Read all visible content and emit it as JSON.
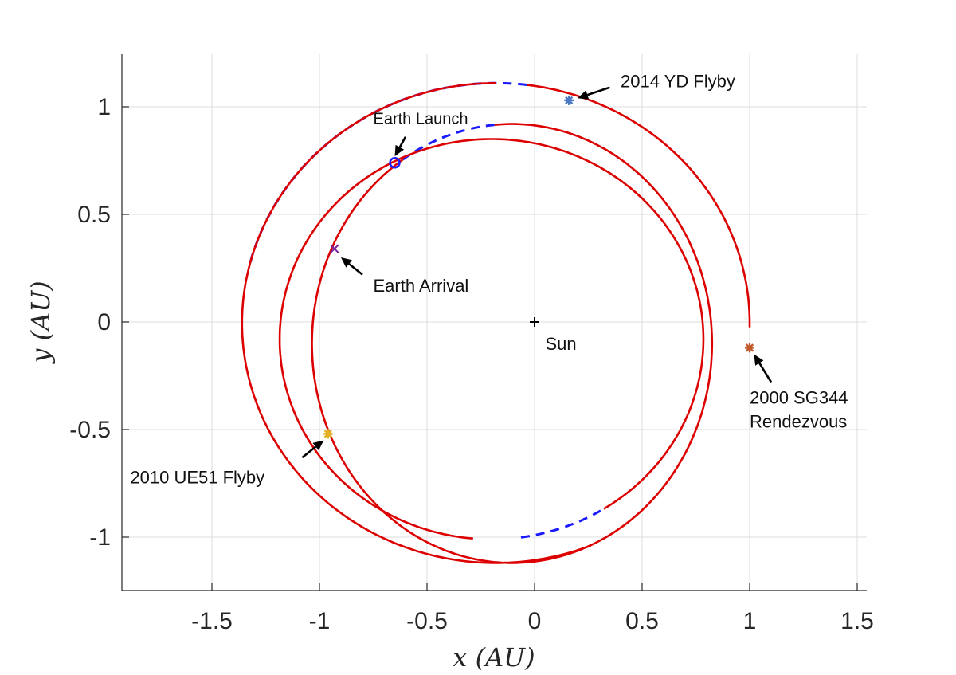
{
  "chart_data": {
    "type": "line",
    "xlabel": "x (AU)",
    "ylabel": "y (AU)",
    "xlim": [
      -1.9,
      1.55
    ],
    "ylim": [
      -1.25,
      1.25
    ],
    "xticks": [
      -1.5,
      -1,
      -0.5,
      0,
      0.5,
      1,
      1.5
    ],
    "xtick_labels": [
      "-1.5",
      "-1",
      "-0.5",
      "0",
      "0.5",
      "1",
      "1.5"
    ],
    "yticks": [
      -1,
      -0.5,
      0,
      0.5,
      1
    ],
    "ytick_labels": [
      "-1",
      "-0.5",
      "0",
      "0.5",
      "1"
    ],
    "grid": true,
    "colors": {
      "solid": "#dd0000",
      "dashed": "#1a1aff",
      "axis": "#262626"
    },
    "orbits": [
      {
        "cx": -0.105,
        "cy": -0.1,
        "a": 0.93,
        "b": 1.02,
        "solid": [
          [
            -183,
            95
          ],
          [
            123,
            177
          ]
        ],
        "dashed": [
          [
            95,
            123
          ]
        ]
      },
      {
        "cx": -0.2,
        "cy": -0.08,
        "a": 0.985,
        "b": 0.93,
        "solid": [
          [
            -58,
            265
          ]
        ],
        "dashed": [
          [
            -82,
            -58
          ]
        ]
      },
      {
        "cx": -0.18,
        "cy": -0.005,
        "a": 1.18,
        "b": 1.115,
        "solid": [
          [
            -270,
            -68
          ],
          [
            -1,
            83
          ]
        ],
        "dashed": [
          [
            83,
            166
          ]
        ]
      }
    ],
    "markers": [
      {
        "label": "Sun",
        "x": 0,
        "y": 0,
        "symbol": "plus",
        "color": "#000000"
      },
      {
        "label": "Earth Launch",
        "x": -0.65,
        "y": 0.74,
        "symbol": "circle",
        "color": "#1a1aff"
      },
      {
        "label": "Earth Arrival",
        "x": -0.93,
        "y": 0.34,
        "symbol": "x",
        "color": "#7a1fa2"
      },
      {
        "label": "2014 YD Flyby",
        "x": 0.16,
        "y": 1.03,
        "symbol": "star",
        "color": "#4a78c2"
      },
      {
        "label": "2000 SG344 Rendezvous",
        "x": 1.0,
        "y": -0.12,
        "symbol": "star",
        "color": "#c05a2a"
      },
      {
        "label": "2010 UE51 Flyby",
        "x": -0.96,
        "y": -0.52,
        "symbol": "star",
        "color": "#e0b020"
      }
    ],
    "annotations": [
      {
        "id": "launch",
        "text": "Earth Launch",
        "lines": [
          "Earth Launch"
        ],
        "text_x": -0.75,
        "text_y": 0.92,
        "arrow_from": [
          -0.6,
          0.86
        ],
        "arrow_to": [
          -0.65,
          0.77
        ]
      },
      {
        "id": "arrival",
        "text": "Earth Arrival",
        "lines": [
          "Earth Arrival"
        ],
        "text_x": -0.75,
        "text_y": 0.14,
        "arrow_from": [
          -0.8,
          0.22
        ],
        "arrow_to": [
          -0.9,
          0.3
        ]
      },
      {
        "id": "yd",
        "text": "2014 YD Flyby",
        "lines": [
          "2014 YD Flyby"
        ],
        "text_x": 0.4,
        "text_y": 1.09,
        "arrow_from": [
          0.35,
          1.09
        ],
        "arrow_to": [
          0.2,
          1.04
        ]
      },
      {
        "id": "sg344",
        "text": "2000 SG344 Rendezvous",
        "lines": [
          "2000 SG344",
          "Rendezvous"
        ],
        "text_x": 1.0,
        "text_y": -0.38,
        "arrow_from": [
          1.1,
          -0.28
        ],
        "arrow_to": [
          1.02,
          -0.15
        ]
      },
      {
        "id": "ue51",
        "text": "2010 UE51 Flyby",
        "lines": [
          "2010 UE51 Flyby"
        ],
        "text_x": -1.88,
        "text_y": -0.75,
        "arrow_from": [
          -1.08,
          -0.63
        ],
        "arrow_to": [
          -0.98,
          -0.55
        ]
      },
      {
        "id": "sun",
        "text": "Sun",
        "lines": [
          "Sun"
        ],
        "text_x": 0.05,
        "text_y": -0.13
      }
    ]
  }
}
